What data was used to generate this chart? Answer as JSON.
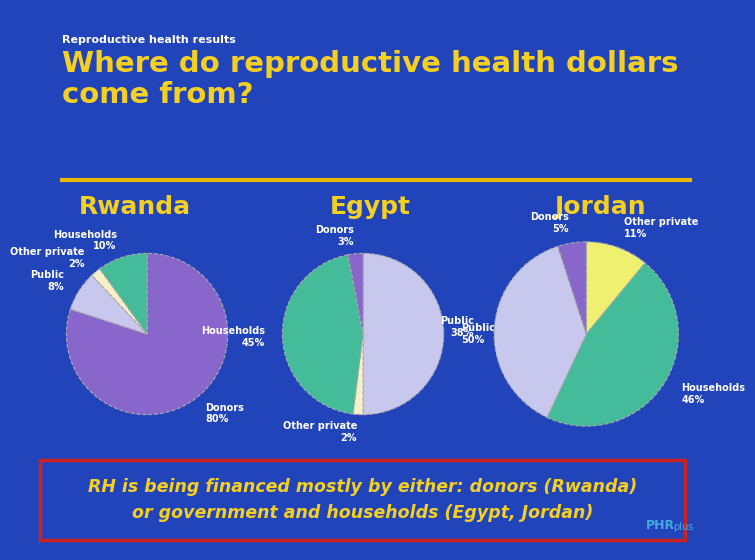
{
  "background_color": "#2244bb",
  "title_small": "Reproductive health results",
  "title_large": "Where do reproductive health dollars\ncome from?",
  "title_color": "#f5d020",
  "title_small_color": "#ffffff",
  "divider_color": "#e8b800",
  "countries": [
    "Rwanda",
    "Egypt",
    "Jordan"
  ],
  "country_color": "#f5d020",
  "pie_data": {
    "Rwanda": {
      "labels": [
        "Donors\n80%",
        "Public\n8%",
        "Other private\n2%",
        "Households\n10%"
      ],
      "values": [
        80,
        8,
        2,
        10
      ],
      "colors": [
        "#8866cc",
        "#c8c8ee",
        "#f5f0c8",
        "#44bb99"
      ],
      "startangle": 90,
      "counterclock": false
    },
    "Egypt": {
      "labels": [
        "Public\n50%",
        "Other private\n2%",
        "Households\n45%",
        "Donors\n3%"
      ],
      "values": [
        50,
        2,
        45,
        3
      ],
      "colors": [
        "#c8c8ee",
        "#f5f0c8",
        "#44bb99",
        "#8866cc"
      ],
      "startangle": 90,
      "counterclock": false
    },
    "Jordan": {
      "labels": [
        "Other private\n11%",
        "Households\n46%",
        "Public\n38%",
        "Donors\n5%"
      ],
      "values": [
        11,
        46,
        38,
        5
      ],
      "colors": [
        "#f0f070",
        "#44bb99",
        "#c8c8ee",
        "#8866cc"
      ],
      "startangle": 90,
      "counterclock": false
    }
  },
  "footer_text": "RH is being financed mostly by either: donors (Rwanda)\nor government and households (Egypt, Jordan)",
  "footer_color": "#f5d020",
  "footer_bg": "#2244bb",
  "footer_border": "#cc2222",
  "phrplus_color": "#44aadd"
}
